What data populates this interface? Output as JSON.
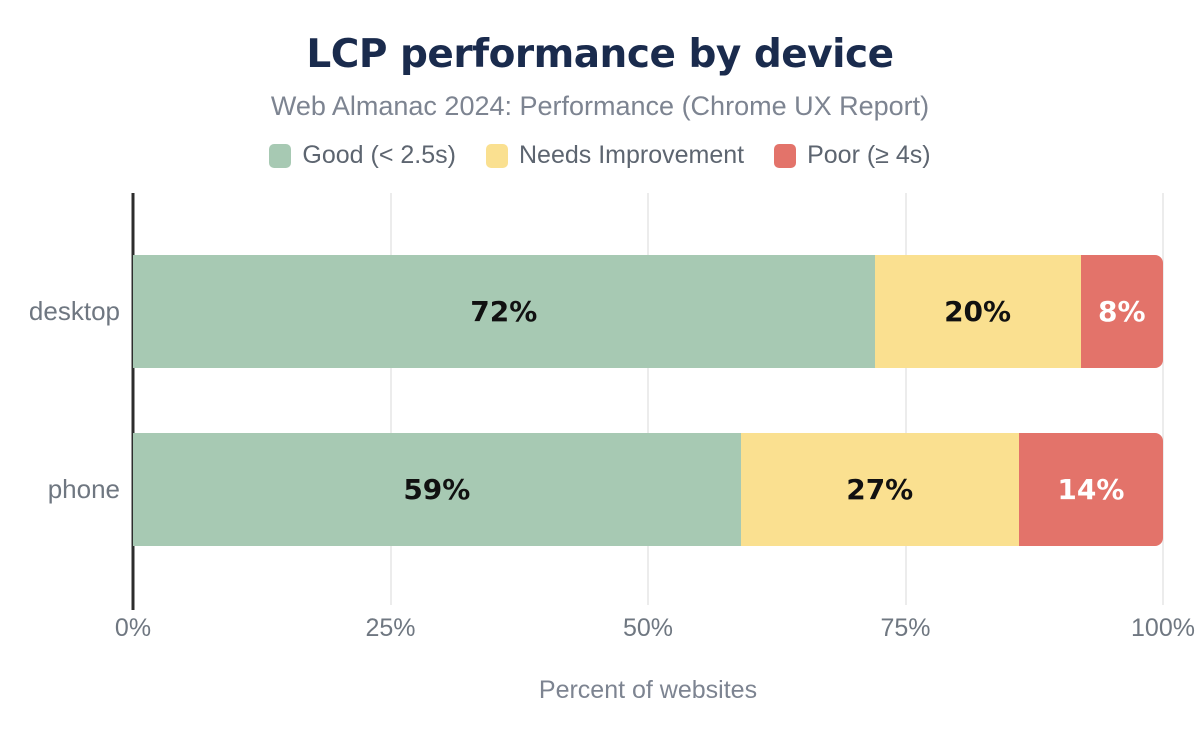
{
  "chart_data": {
    "type": "bar",
    "orientation": "horizontal",
    "stacked": true,
    "title": "LCP performance by device",
    "subtitle": "Web Almanac 2024: Performance (Chrome UX Report)",
    "xlabel": "Percent of websites",
    "categories": [
      "desktop",
      "phone"
    ],
    "series": [
      {
        "name": "Good (< 2.5s)",
        "color": "#a7c9b3",
        "label_color": "#111111",
        "values": [
          72,
          59
        ]
      },
      {
        "name": "Needs Improvement",
        "color": "#fae090",
        "label_color": "#111111",
        "values": [
          20,
          27
        ]
      },
      {
        "name": "Poor (≥ 4s)",
        "color": "#e3736a",
        "label_color": "#ffffff",
        "values": [
          8,
          14
        ]
      }
    ],
    "value_suffix": "%",
    "xticks": [
      0,
      25,
      50,
      75,
      100
    ],
    "xtick_labels": [
      "0%",
      "25%",
      "50%",
      "75%",
      "100%"
    ],
    "xlim": [
      0,
      100
    ],
    "grid": "vertical",
    "legend_position": "top"
  },
  "colors": {
    "title": "#1a2b4d",
    "subtitle": "#7d8491",
    "axis_text": "#6f7781",
    "legend_text": "#5d6570",
    "gridline": "#ececec",
    "axis_line": "#2d2d2d",
    "background": "#ffffff"
  }
}
